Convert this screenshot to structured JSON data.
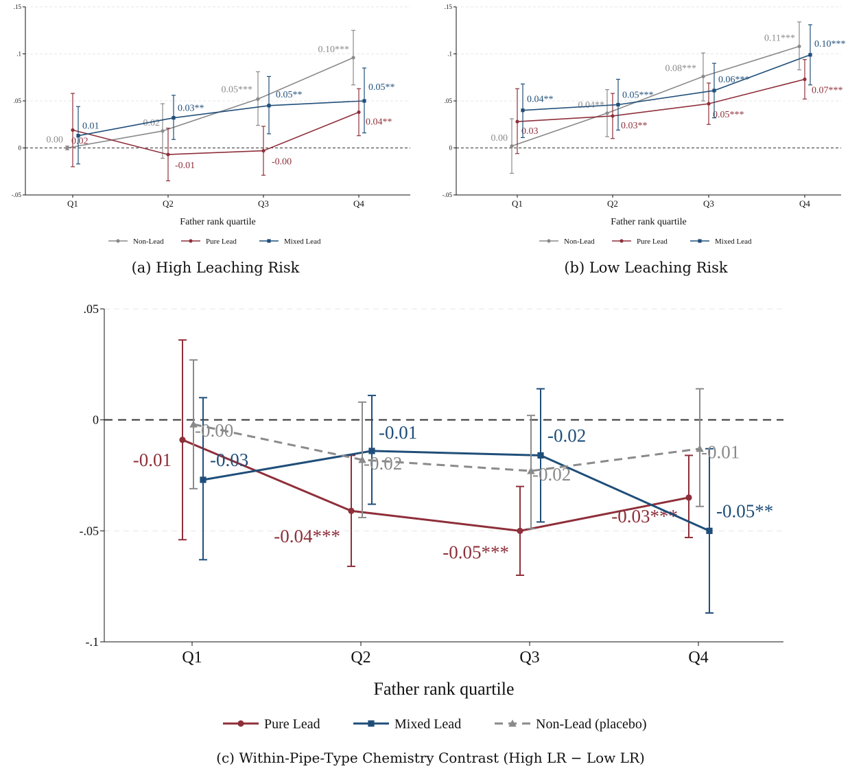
{
  "colors": {
    "non_lead": "#8a8a8a",
    "pure_lead": "#8e2f3a",
    "mixed_lead": "#1f4e79",
    "axis": "#111111",
    "grid": "#e6e6e6"
  },
  "chart_data": [
    {
      "type": "line",
      "caption": "(a) High Leaching Risk",
      "xlabel": "Father rank quartile",
      "ylabel": "",
      "categories": [
        "Q1",
        "Q2",
        "Q3",
        "Q4"
      ],
      "ylim": [
        -0.05,
        0.15
      ],
      "yticks": [
        {
          "value": -0.05,
          "label": "-.05"
        },
        {
          "value": 0,
          "label": "0"
        },
        {
          "value": 0.05,
          "label": ".05"
        },
        {
          "value": 0.1,
          "label": ".1"
        },
        {
          "value": 0.15,
          "label": ".15"
        }
      ],
      "reference_line": 0,
      "grid": true,
      "legend": "bottom",
      "series": [
        {
          "name": "Non-Lead",
          "key": "non_lead",
          "marker": "circle",
          "dashed": false,
          "values": [
            0.0,
            0.018,
            0.052,
            0.096
          ],
          "lower": [
            -0.002,
            -0.011,
            0.024,
            0.067
          ],
          "upper": [
            0.002,
            0.047,
            0.081,
            0.125
          ],
          "labels": [
            "0.00",
            "0.02",
            "0.05***",
            "0.10***"
          ]
        },
        {
          "name": "Pure Lead",
          "key": "pure_lead",
          "marker": "circle",
          "dashed": false,
          "values": [
            0.019,
            -0.007,
            -0.003,
            0.038
          ],
          "lower": [
            -0.02,
            -0.035,
            -0.029,
            0.013
          ],
          "upper": [
            0.058,
            0.021,
            0.023,
            0.063
          ],
          "labels": [
            "0.02",
            "-0.01",
            "-0.00",
            "0.04**"
          ]
        },
        {
          "name": "Mixed Lead",
          "key": "mixed_lead",
          "marker": "square",
          "dashed": false,
          "values": [
            0.013,
            0.032,
            0.045,
            0.05
          ],
          "lower": [
            -0.017,
            0.009,
            0.015,
            0.016
          ],
          "upper": [
            0.044,
            0.056,
            0.076,
            0.085
          ],
          "labels": [
            "0.01",
            "0.03**",
            "0.05**",
            "0.05**"
          ]
        }
      ]
    },
    {
      "type": "line",
      "caption": "(b) Low Leaching Risk",
      "xlabel": "Father rank quartile",
      "ylabel": "",
      "categories": [
        "Q1",
        "Q2",
        "Q3",
        "Q4"
      ],
      "ylim": [
        -0.05,
        0.15
      ],
      "yticks": [
        {
          "value": -0.05,
          "label": "-.05"
        },
        {
          "value": 0,
          "label": "0"
        },
        {
          "value": 0.05,
          "label": ".05"
        },
        {
          "value": 0.1,
          "label": ".1"
        },
        {
          "value": 0.15,
          "label": ".15"
        }
      ],
      "reference_line": 0,
      "grid": true,
      "legend": "bottom",
      "series": [
        {
          "name": "Non-Lead",
          "key": "non_lead",
          "marker": "circle",
          "dashed": false,
          "values": [
            0.002,
            0.037,
            0.076,
            0.108
          ],
          "lower": [
            -0.027,
            0.012,
            0.05,
            0.083
          ],
          "upper": [
            0.031,
            0.062,
            0.101,
            0.134
          ],
          "labels": [
            "0.00",
            "0.04**",
            "0.08***",
            "0.11***"
          ]
        },
        {
          "name": "Pure Lead",
          "key": "pure_lead",
          "marker": "circle",
          "dashed": false,
          "values": [
            0.028,
            0.034,
            0.047,
            0.073
          ],
          "lower": [
            -0.006,
            0.01,
            0.025,
            0.052
          ],
          "upper": [
            0.063,
            0.058,
            0.069,
            0.094
          ],
          "labels": [
            "0.03",
            "0.03**",
            "0.05***",
            "0.07***"
          ]
        },
        {
          "name": "Mixed Lead",
          "key": "mixed_lead",
          "marker": "square",
          "dashed": false,
          "values": [
            0.04,
            0.046,
            0.061,
            0.099
          ],
          "lower": [
            0.011,
            0.019,
            0.032,
            0.067
          ],
          "upper": [
            0.068,
            0.073,
            0.09,
            0.131
          ],
          "labels": [
            "0.04**",
            "0.05***",
            "0.06***",
            "0.10***"
          ]
        }
      ]
    },
    {
      "type": "line",
      "caption": "(c) Within-Pipe-Type Chemistry Contrast (High LR − Low LR)",
      "xlabel": "Father rank quartile",
      "ylabel": "",
      "categories": [
        "Q1",
        "Q2",
        "Q3",
        "Q4"
      ],
      "ylim": [
        -0.1,
        0.05
      ],
      "yticks": [
        {
          "value": -0.1,
          "label": "-.1"
        },
        {
          "value": -0.05,
          "label": "-.05"
        },
        {
          "value": 0,
          "label": "0"
        },
        {
          "value": 0.05,
          "label": ".05"
        }
      ],
      "reference_line": 0,
      "grid": true,
      "legend": "bottom",
      "series": [
        {
          "name": "Pure Lead",
          "key": "pure_lead",
          "marker": "circle",
          "dashed": false,
          "values": [
            -0.009,
            -0.041,
            -0.05,
            -0.035
          ],
          "lower": [
            -0.054,
            -0.066,
            -0.07,
            -0.053
          ],
          "upper": [
            0.036,
            -0.016,
            -0.03,
            -0.016
          ],
          "labels": [
            "-0.01",
            "-0.04***",
            "-0.05***",
            "-0.03***"
          ]
        },
        {
          "name": "Mixed Lead",
          "key": "mixed_lead",
          "marker": "square",
          "dashed": false,
          "values": [
            -0.027,
            -0.014,
            -0.016,
            -0.05
          ],
          "lower": [
            -0.063,
            -0.038,
            -0.046,
            -0.087
          ],
          "upper": [
            0.01,
            0.011,
            0.014,
            -0.013
          ],
          "labels": [
            "-0.03",
            "-0.01",
            "-0.02",
            "-0.05**"
          ]
        },
        {
          "name": "Non-Lead (placebo)",
          "key": "non_lead",
          "marker": "triangle",
          "dashed": true,
          "values": [
            -0.002,
            -0.018,
            -0.023,
            -0.013
          ],
          "lower": [
            -0.031,
            -0.044,
            -0.049,
            -0.039
          ],
          "upper": [
            0.027,
            0.008,
            0.002,
            0.014
          ],
          "labels": [
            "-0.00",
            "-0.02",
            "-0.02",
            "-0.01"
          ]
        }
      ]
    }
  ]
}
